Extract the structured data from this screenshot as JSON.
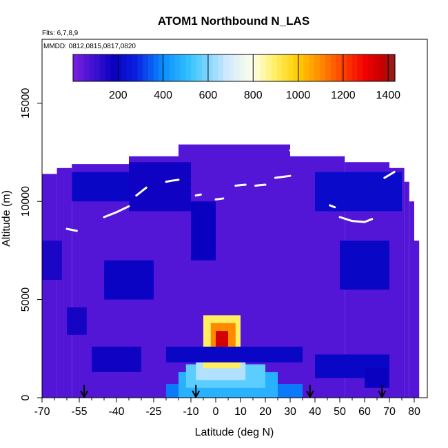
{
  "chart_data": {
    "type": "heatmap",
    "title": "ATOM1 Northbound N_LAS",
    "subtitle_flights": "Flts: 6,7,8,9",
    "subtitle_dates": "MMDD: 0812,0815,0817,0820",
    "xlabel": "Latitude (deg N)",
    "ylabel": "Altitude (m)",
    "xlim": [
      -70,
      82
    ],
    "ylim": [
      0,
      17500
    ],
    "x_ticks": [
      -70,
      -55,
      -40,
      -25,
      -10,
      0,
      10,
      20,
      30,
      40,
      50,
      60,
      70,
      80
    ],
    "x_tick_labels": [
      "-70",
      "-55",
      "-40",
      "-25",
      "-10",
      "0",
      "10",
      "20",
      "30",
      "40",
      "50",
      "60",
      "70",
      "80"
    ],
    "x_minor_ticks": [
      -65,
      -60,
      -50,
      -45,
      -35,
      -30,
      -20,
      -15,
      -5,
      5,
      15,
      25,
      35,
      45,
      55,
      65,
      75
    ],
    "y_ticks": [
      0,
      5000,
      10000,
      15000
    ],
    "y_tick_labels": [
      "0",
      "5000",
      "10000",
      "15000"
    ],
    "colorbar": {
      "min": 0,
      "max": 1430,
      "ticks": [
        200,
        400,
        600,
        800,
        1000,
        1200,
        1400
      ],
      "tick_labels": [
        "200",
        "400",
        "600",
        "800",
        "1000",
        "1200",
        "1400"
      ],
      "stops": [
        {
          "v": 0,
          "c": "#7b1fe0"
        },
        {
          "v": 100,
          "c": "#3a10d0"
        },
        {
          "v": 180,
          "c": "#0a00c0"
        },
        {
          "v": 280,
          "c": "#0a20e0"
        },
        {
          "v": 400,
          "c": "#0a8cff"
        },
        {
          "v": 520,
          "c": "#36c4ff"
        },
        {
          "v": 680,
          "c": "#cfe8ff"
        },
        {
          "v": 800,
          "c": "#ffffe8"
        },
        {
          "v": 900,
          "c": "#ffee60"
        },
        {
          "v": 1000,
          "c": "#ffcc00"
        },
        {
          "v": 1100,
          "c": "#ff8a00"
        },
        {
          "v": 1200,
          "c": "#ff4000"
        },
        {
          "v": 1300,
          "c": "#f00000"
        },
        {
          "v": 1380,
          "c": "#c00000"
        },
        {
          "v": 1430,
          "c": "#902020"
        }
      ]
    },
    "top_altitude_by_latitude": [
      [
        -70,
        11400
      ],
      [
        -64,
        11400
      ],
      [
        -64,
        11700
      ],
      [
        -58,
        11700
      ],
      [
        -58,
        11900
      ],
      [
        -35,
        11900
      ],
      [
        -35,
        12300
      ],
      [
        -15,
        12300
      ],
      [
        -15,
        12900
      ],
      [
        30,
        12900
      ],
      [
        30,
        12300
      ],
      [
        52,
        12300
      ],
      [
        52,
        12000
      ],
      [
        70,
        12000
      ],
      [
        70,
        11700
      ],
      [
        76,
        11700
      ],
      [
        76,
        11000
      ],
      [
        78,
        11000
      ],
      [
        78,
        10000
      ],
      [
        80,
        10000
      ],
      [
        80,
        8000
      ],
      [
        82,
        8000
      ]
    ],
    "high_value_regions": [
      {
        "lat": [
          -20,
          35
        ],
        "alt": [
          0,
          700
        ],
        "value": 380
      },
      {
        "lat": [
          -15,
          25
        ],
        "alt": [
          0,
          1300
        ],
        "value": 480
      },
      {
        "lat": [
          -12,
          20
        ],
        "alt": [
          500,
          1700
        ],
        "value": 560
      },
      {
        "lat": [
          -8,
          12
        ],
        "alt": [
          900,
          2000
        ],
        "value": 650
      },
      {
        "lat": [
          -5,
          10
        ],
        "alt": [
          1500,
          4200
        ],
        "value": 900
      },
      {
        "lat": [
          -2,
          8
        ],
        "alt": [
          2200,
          3800
        ],
        "value": 1100
      },
      {
        "lat": [
          0,
          5
        ],
        "alt": [
          2600,
          3400
        ],
        "value": 1350
      },
      {
        "lat": [
          -50,
          -30
        ],
        "alt": [
          1300,
          2600
        ],
        "value": 170
      },
      {
        "lat": [
          -20,
          35
        ],
        "alt": [
          1800,
          2600
        ],
        "value": 200
      },
      {
        "lat": [
          40,
          70
        ],
        "alt": [
          1000,
          2200
        ],
        "value": 200
      },
      {
        "lat": [
          -45,
          -25
        ],
        "alt": [
          5000,
          7000
        ],
        "value": 190
      },
      {
        "lat": [
          50,
          70
        ],
        "alt": [
          5500,
          8000
        ],
        "value": 200
      },
      {
        "lat": [
          -58,
          -35
        ],
        "alt": [
          10000,
          11500
        ],
        "value": 200
      },
      {
        "lat": [
          -35,
          -10
        ],
        "alt": [
          9500,
          12000
        ],
        "value": 170
      },
      {
        "lat": [
          40,
          75
        ],
        "alt": [
          9500,
          11500
        ],
        "value": 210
      },
      {
        "lat": [
          -10,
          0
        ],
        "alt": [
          7000,
          10000
        ],
        "value": 180
      },
      {
        "lat": [
          -60,
          -52
        ],
        "alt": [
          3200,
          4600
        ],
        "value": 160
      },
      {
        "lat": [
          -70,
          -62
        ],
        "alt": [
          6000,
          8000
        ],
        "value": 150
      },
      {
        "lat": [
          60,
          70
        ],
        "alt": [
          500,
          1500
        ],
        "value": 180
      }
    ],
    "background_value": 60,
    "sample_tracks": [
      {
        "lat": [
          -60,
          -58,
          -56
        ],
        "alt": [
          8600,
          8550,
          8500
        ]
      },
      {
        "lat": [
          -45,
          -40,
          -35
        ],
        "alt": [
          9200,
          9450,
          9750
        ]
      },
      {
        "lat": [
          -32,
          -30,
          -28
        ],
        "alt": [
          10300,
          10500,
          10700
        ]
      },
      {
        "lat": [
          -20,
          -18,
          -15
        ],
        "alt": [
          11000,
          11050,
          11100
        ]
      },
      {
        "lat": [
          -8,
          -6
        ],
        "alt": [
          10300,
          10350
        ]
      },
      {
        "lat": [
          0,
          3
        ],
        "alt": [
          10100,
          10150
        ]
      },
      {
        "lat": [
          8,
          12
        ],
        "alt": [
          10800,
          10850
        ]
      },
      {
        "lat": [
          16,
          20
        ],
        "alt": [
          10800,
          10850
        ]
      },
      {
        "lat": [
          24,
          30
        ],
        "alt": [
          11200,
          11300
        ]
      },
      {
        "lat": [
          46,
          48
        ],
        "alt": [
          9800,
          9700
        ]
      },
      {
        "lat": [
          50,
          55,
          60,
          63
        ],
        "alt": [
          9200,
          9000,
          8950,
          9100
        ]
      },
      {
        "lat": [
          68,
          72
        ],
        "alt": [
          11200,
          11500
        ]
      },
      {
        "lat": [
          30,
          33
        ],
        "alt": [
          12600,
          12900
        ]
      }
    ],
    "arrow_markers": [
      {
        "lat": -53
      },
      {
        "lat": -8
      },
      {
        "lat": 38
      },
      {
        "lat": 67
      }
    ]
  }
}
